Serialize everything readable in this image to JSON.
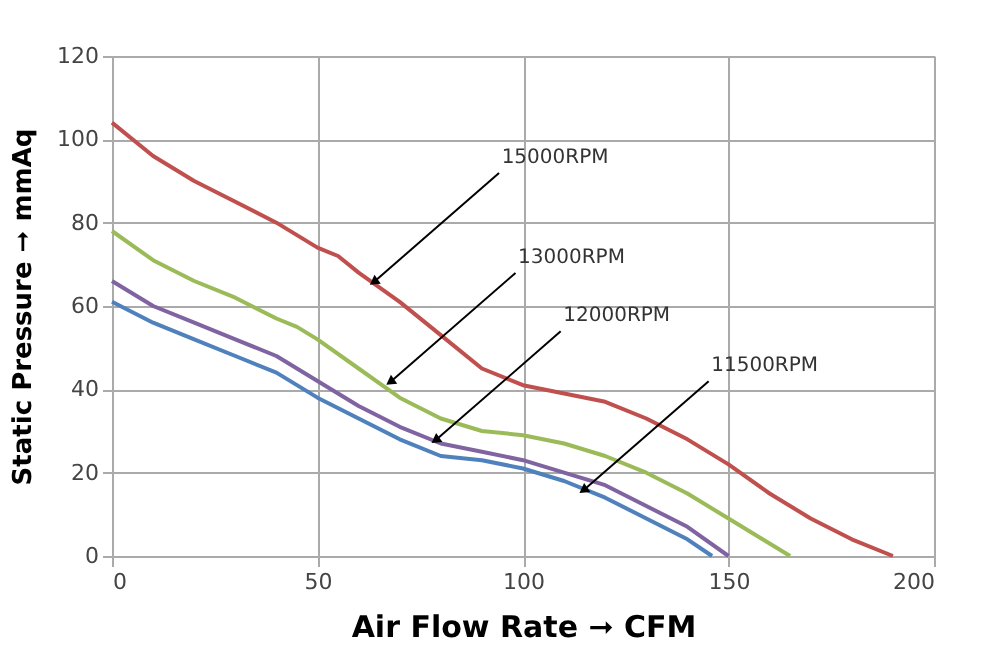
{
  "chart_data": {
    "type": "line",
    "xlabel": "Air Flow Rate ➞ CFM",
    "ylabel": "Static Pressure ➞ mmAq",
    "xlim": [
      0,
      200
    ],
    "xticks": [
      0,
      50,
      100,
      150,
      200
    ],
    "ylim": [
      0,
      120
    ],
    "yticks": [
      0,
      20,
      40,
      60,
      80,
      100,
      120
    ],
    "grid": true,
    "marker": "none",
    "line_style": "solid",
    "series": [
      {
        "color": "#c0504d",
        "x": [
          0,
          10,
          20,
          30,
          40,
          50,
          55,
          60,
          70,
          80,
          90,
          100,
          110,
          120,
          130,
          140,
          150,
          160,
          170,
          180,
          190
        ],
        "values": [
          104,
          96,
          90,
          85,
          80,
          74,
          72,
          68,
          61,
          53,
          45,
          41,
          39,
          37,
          33,
          28,
          22,
          15,
          9,
          4,
          0
        ]
      },
      {
        "color": "#9bbb59",
        "x": [
          0,
          10,
          20,
          30,
          40,
          45,
          50,
          60,
          70,
          80,
          90,
          100,
          110,
          120,
          130,
          140,
          150,
          160,
          165
        ],
        "values": [
          78,
          71,
          66,
          62,
          57,
          55,
          52,
          45,
          38,
          33,
          30,
          29,
          27,
          24,
          20,
          15,
          9,
          3,
          0
        ]
      },
      {
        "color": "#8064a2",
        "x": [
          0,
          10,
          20,
          30,
          40,
          50,
          60,
          70,
          80,
          90,
          100,
          110,
          120,
          130,
          140,
          150
        ],
        "values": [
          66,
          60,
          56,
          52,
          48,
          42,
          36,
          31,
          27,
          25,
          23,
          20,
          17,
          12,
          7,
          0
        ]
      },
      {
        "color": "#4f81bd",
        "x": [
          0,
          10,
          20,
          30,
          40,
          50,
          60,
          70,
          80,
          90,
          100,
          110,
          120,
          130,
          140,
          146
        ],
        "values": [
          61,
          56,
          52,
          48,
          44,
          38,
          33,
          28,
          24,
          23,
          21,
          18,
          14,
          9,
          4,
          0
        ]
      }
    ],
    "annotations": [
      {
        "text": "15000RPM",
        "x": 64,
        "y": 66
      },
      {
        "text": "13000RPM",
        "x": 68,
        "y": 42
      },
      {
        "text": "12000RPM",
        "x": 79,
        "y": 28
      },
      {
        "text": "11500RPM",
        "x": 115,
        "y": 16
      }
    ]
  }
}
